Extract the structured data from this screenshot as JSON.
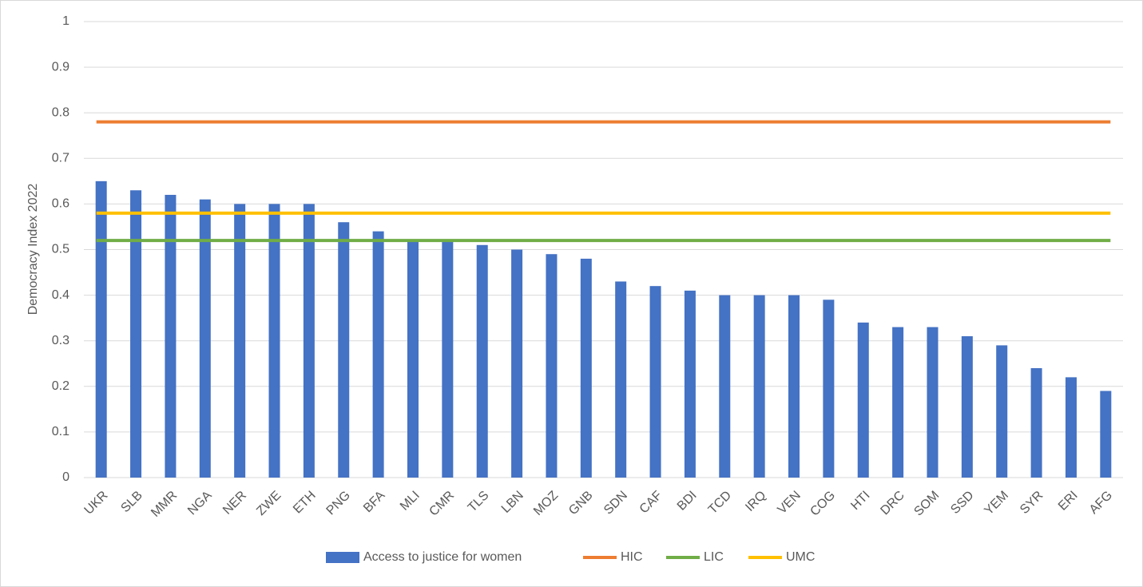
{
  "chart_data": {
    "type": "bar",
    "y_label": "Democracy Index 2022",
    "categories": [
      "UKR",
      "SLB",
      "MMR",
      "NGA",
      "NER",
      "ZWE",
      "ETH",
      "PNG",
      "BFA",
      "MLI",
      "CMR",
      "TLS",
      "LBN",
      "MOZ",
      "GNB",
      "SDN",
      "CAF",
      "BDI",
      "TCD",
      "IRQ",
      "VEN",
      "COG",
      "HTI",
      "DRC",
      "SOM",
      "SSD",
      "YEM",
      "SYR",
      "ERI",
      "AFG"
    ],
    "series": [
      {
        "name": "Access to justice for women",
        "type": "bar",
        "color": "#4472c4",
        "values": [
          0.65,
          0.63,
          0.62,
          0.61,
          0.6,
          0.6,
          0.6,
          0.56,
          0.54,
          0.52,
          0.52,
          0.51,
          0.5,
          0.49,
          0.48,
          0.43,
          0.42,
          0.41,
          0.4,
          0.4,
          0.4,
          0.39,
          0.34,
          0.33,
          0.33,
          0.31,
          0.29,
          0.24,
          0.22,
          0.19
        ]
      },
      {
        "name": "HIC",
        "type": "line",
        "color": "#ed7d31",
        "values": [
          0.78,
          0.78,
          0.78,
          0.78,
          0.78,
          0.78,
          0.78,
          0.78,
          0.78,
          0.78,
          0.78,
          0.78,
          0.78,
          0.78,
          0.78,
          0.78,
          0.78,
          0.78,
          0.78,
          0.78,
          0.78,
          0.78,
          0.78,
          0.78,
          0.78,
          0.78,
          0.78,
          0.78,
          0.78,
          0.78
        ]
      },
      {
        "name": "LIC",
        "type": "line",
        "color": "#70ad47",
        "values": [
          0.52,
          0.52,
          0.52,
          0.52,
          0.52,
          0.52,
          0.52,
          0.52,
          0.52,
          0.52,
          0.52,
          0.52,
          0.52,
          0.52,
          0.52,
          0.52,
          0.52,
          0.52,
          0.52,
          0.52,
          0.52,
          0.52,
          0.52,
          0.52,
          0.52,
          0.52,
          0.52,
          0.52,
          0.52,
          0.52
        ]
      },
      {
        "name": "UMC",
        "type": "line",
        "color": "#ffc000",
        "values": [
          0.58,
          0.58,
          0.58,
          0.58,
          0.58,
          0.58,
          0.58,
          0.58,
          0.58,
          0.58,
          0.58,
          0.58,
          0.58,
          0.58,
          0.58,
          0.58,
          0.58,
          0.58,
          0.58,
          0.58,
          0.58,
          0.58,
          0.58,
          0.58,
          0.58,
          0.58,
          0.58,
          0.58,
          0.58,
          0.58
        ]
      }
    ],
    "ylim": [
      0,
      1
    ],
    "yticks": [
      0,
      0.1,
      0.2,
      0.3,
      0.4,
      0.5,
      0.6,
      0.7,
      0.8,
      0.9,
      1
    ],
    "grid": true,
    "legend": "bottom"
  }
}
